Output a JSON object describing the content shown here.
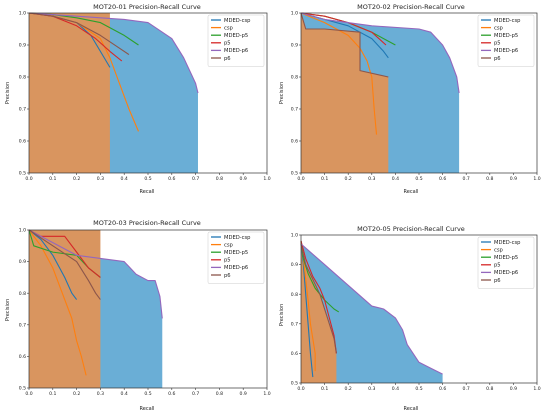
{
  "chart_data": [
    {
      "type": "line",
      "title": "MOT20-01 Precision-Recall Curve",
      "xlabel": "Recall",
      "ylabel": "Precision",
      "xlim": [
        0,
        1.0
      ],
      "ylim": [
        0.5,
        1.0
      ],
      "xticks": [
        "0.0",
        "0.1",
        "0.2",
        "0.3",
        "0.4",
        "0.5",
        "0.6",
        "0.7",
        "0.8",
        "0.9",
        "1.0"
      ],
      "yticks": [
        "0.5",
        "0.6",
        "0.7",
        "0.8",
        "0.9",
        "1.0"
      ],
      "legend_position": "top-right",
      "series": [
        {
          "name": "MDED-csp",
          "color": "#1f77b4",
          "x": [
            0.0,
            0.1,
            0.2,
            0.26,
            0.3,
            0.34
          ],
          "y": [
            1.0,
            0.99,
            0.97,
            0.93,
            0.88,
            0.83
          ]
        },
        {
          "name": "csp",
          "color": "#ff7f0e",
          "x": [
            0.0,
            0.1,
            0.2,
            0.3,
            0.34,
            0.38,
            0.42,
            0.46
          ],
          "y": [
            1.0,
            0.99,
            0.97,
            0.92,
            0.86,
            0.78,
            0.7,
            0.63
          ]
        },
        {
          "name": "MDED-p5",
          "color": "#2ca02c",
          "x": [
            0.0,
            0.1,
            0.2,
            0.3,
            0.4,
            0.46
          ],
          "y": [
            1.0,
            0.995,
            0.985,
            0.97,
            0.93,
            0.9
          ]
        },
        {
          "name": "p5",
          "color": "#d62728",
          "x": [
            0.0,
            0.1,
            0.2,
            0.28,
            0.34,
            0.39
          ],
          "y": [
            1.0,
            0.99,
            0.96,
            0.92,
            0.88,
            0.85
          ]
        },
        {
          "name": "MDED-p6",
          "color": "#9467bd",
          "x": [
            0.0,
            0.2,
            0.4,
            0.5,
            0.6,
            0.65,
            0.7,
            0.71
          ],
          "y": [
            1.0,
            0.99,
            0.98,
            0.97,
            0.92,
            0.86,
            0.78,
            0.75
          ]
        },
        {
          "name": "p6",
          "color": "#8c564b",
          "x": [
            0.0,
            0.1,
            0.2,
            0.3,
            0.38,
            0.42
          ],
          "y": [
            1.0,
            0.99,
            0.97,
            0.93,
            0.89,
            0.87
          ]
        }
      ],
      "fills": [
        {
          "color": "#6aaed6",
          "x": [
            0.0,
            0.2,
            0.4,
            0.5,
            0.6,
            0.65,
            0.7,
            0.71
          ],
          "y": [
            1.0,
            0.99,
            0.98,
            0.97,
            0.92,
            0.86,
            0.78,
            0.75
          ]
        },
        {
          "color": "#d9955f",
          "x": [
            0.0,
            0.34
          ],
          "y": [
            1.0,
            1.0
          ]
        }
      ]
    },
    {
      "type": "line",
      "title": "MOT20-02 Precision-Recall Curve",
      "xlabel": "Recall",
      "ylabel": "Precision",
      "xlim": [
        0,
        1.0
      ],
      "ylim": [
        0.5,
        1.0
      ],
      "xticks": [
        "0.0",
        "0.1",
        "0.2",
        "0.3",
        "0.4",
        "0.5",
        "0.6",
        "0.7",
        "0.8",
        "0.9",
        "1.0"
      ],
      "yticks": [
        "0.5",
        "0.6",
        "0.7",
        "0.8",
        "0.9",
        "1.0"
      ],
      "legend_position": "top-right",
      "series": [
        {
          "name": "MDED-csp",
          "color": "#1f77b4",
          "x": [
            0.0,
            0.1,
            0.2,
            0.3,
            0.35,
            0.37
          ],
          "y": [
            1.0,
            0.98,
            0.96,
            0.92,
            0.88,
            0.86
          ]
        },
        {
          "name": "csp",
          "color": "#ff7f0e",
          "x": [
            0.0,
            0.1,
            0.2,
            0.25,
            0.28,
            0.3,
            0.31,
            0.32
          ],
          "y": [
            1.0,
            0.97,
            0.93,
            0.89,
            0.85,
            0.8,
            0.7,
            0.62
          ]
        },
        {
          "name": "MDED-p5",
          "color": "#2ca02c",
          "x": [
            0.0,
            0.1,
            0.2,
            0.3,
            0.4
          ],
          "y": [
            1.0,
            0.99,
            0.97,
            0.94,
            0.9
          ]
        },
        {
          "name": "p5",
          "color": "#d62728",
          "x": [
            0.0,
            0.1,
            0.2,
            0.3,
            0.36
          ],
          "y": [
            1.0,
            0.99,
            0.97,
            0.94,
            0.9
          ]
        },
        {
          "name": "MDED-p6",
          "color": "#9467bd",
          "x": [
            0.0,
            0.1,
            0.3,
            0.5,
            0.55,
            0.6,
            0.63,
            0.66,
            0.67
          ],
          "y": [
            1.0,
            0.98,
            0.96,
            0.95,
            0.94,
            0.9,
            0.86,
            0.8,
            0.75
          ]
        },
        {
          "name": "p6",
          "color": "#8c564b",
          "x": [
            0.0,
            0.02,
            0.1,
            0.25,
            0.25,
            0.37
          ],
          "y": [
            1.0,
            0.95,
            0.95,
            0.94,
            0.82,
            0.8
          ]
        }
      ],
      "fills": [
        {
          "color": "#6aaed6",
          "x": [
            0.0,
            0.1,
            0.3,
            0.5,
            0.55,
            0.6,
            0.63,
            0.66,
            0.67
          ],
          "y": [
            1.0,
            0.98,
            0.96,
            0.95,
            0.94,
            0.9,
            0.86,
            0.8,
            0.75
          ]
        },
        {
          "color": "#d9955f",
          "x": [
            0.0,
            0.02,
            0.1,
            0.25,
            0.25,
            0.37
          ],
          "y": [
            1.0,
            0.95,
            0.95,
            0.94,
            0.82,
            0.8
          ]
        }
      ]
    },
    {
      "type": "line",
      "title": "MOT20-03 Precision-Recall Curve",
      "xlabel": "Recall",
      "ylabel": "Precision",
      "xlim": [
        0,
        1.0
      ],
      "ylim": [
        0.5,
        1.0
      ],
      "xticks": [
        "0.0",
        "0.1",
        "0.2",
        "0.3",
        "0.4",
        "0.5",
        "0.6",
        "0.7",
        "0.8",
        "0.9",
        "1.0"
      ],
      "yticks": [
        "0.5",
        "0.6",
        "0.7",
        "0.8",
        "0.9",
        "1.0"
      ],
      "legend_position": "top-right",
      "series": [
        {
          "name": "MDED-csp",
          "color": "#1f77b4",
          "x": [
            0.0,
            0.05,
            0.1,
            0.15,
            0.18,
            0.2,
            0.2
          ],
          "y": [
            1.0,
            0.97,
            0.92,
            0.85,
            0.8,
            0.78,
            0.78
          ]
        },
        {
          "name": "csp",
          "color": "#ff7f0e",
          "x": [
            0.0,
            0.05,
            0.1,
            0.15,
            0.18,
            0.2,
            0.22,
            0.24
          ],
          "y": [
            1.0,
            0.95,
            0.88,
            0.78,
            0.72,
            0.65,
            0.6,
            0.54
          ]
        },
        {
          "name": "MDED-p5",
          "color": "#2ca02c",
          "x": [
            0.0,
            0.02,
            0.1,
            0.2,
            0.25,
            0.3
          ],
          "y": [
            1.0,
            0.95,
            0.93,
            0.92,
            0.88,
            0.85
          ]
        },
        {
          "name": "p5",
          "color": "#d62728",
          "x": [
            0.0,
            0.05,
            0.1,
            0.15,
            0.2,
            0.25,
            0.3
          ],
          "y": [
            1.0,
            0.98,
            0.98,
            0.98,
            0.93,
            0.88,
            0.85
          ]
        },
        {
          "name": "MDED-p6",
          "color": "#9467bd",
          "x": [
            0.0,
            0.2,
            0.4,
            0.45,
            0.5,
            0.53,
            0.55,
            0.56
          ],
          "y": [
            1.0,
            0.92,
            0.9,
            0.86,
            0.84,
            0.84,
            0.79,
            0.72
          ]
        },
        {
          "name": "p6",
          "color": "#8c564b",
          "x": [
            0.0,
            0.1,
            0.2,
            0.25,
            0.28,
            0.3
          ],
          "y": [
            1.0,
            0.95,
            0.9,
            0.84,
            0.8,
            0.78
          ]
        }
      ],
      "fills": [
        {
          "color": "#6aaed6",
          "x": [
            0.0,
            0.2,
            0.4,
            0.45,
            0.5,
            0.53,
            0.55,
            0.56
          ],
          "y": [
            1.0,
            0.92,
            0.9,
            0.86,
            0.84,
            0.84,
            0.79,
            0.72
          ]
        },
        {
          "color": "#d9955f",
          "x": [
            0.0,
            0.3
          ],
          "y": [
            1.0,
            1.0
          ]
        }
      ]
    },
    {
      "type": "line",
      "title": "MOT20-05 Precision-Recall Curve",
      "xlabel": "Recall",
      "ylabel": "Precision",
      "xlim": [
        0,
        1.0
      ],
      "ylim": [
        0.5,
        1.0
      ],
      "xticks": [
        "0.0",
        "0.1",
        "0.2",
        "0.3",
        "0.4",
        "0.5",
        "0.6",
        "0.7",
        "0.8",
        "0.9",
        "1.0"
      ],
      "yticks": [
        "0.5",
        "0.6",
        "0.7",
        "0.8",
        "0.9",
        "1.0"
      ],
      "legend_position": "top-right",
      "series": [
        {
          "name": "MDED-csp",
          "color": "#1f77b4",
          "x": [
            0.0,
            0.01,
            0.02,
            0.03,
            0.04,
            0.05
          ],
          "y": [
            0.98,
            0.9,
            0.8,
            0.7,
            0.6,
            0.52
          ]
        },
        {
          "name": "csp",
          "color": "#ff7f0e",
          "x": [
            0.0,
            0.01,
            0.02,
            0.03,
            0.04,
            0.05,
            0.06,
            0.06
          ],
          "y": [
            0.98,
            0.92,
            0.85,
            0.78,
            0.7,
            0.65,
            0.6,
            0.54
          ]
        },
        {
          "name": "MDED-p5",
          "color": "#2ca02c",
          "x": [
            0.0,
            0.01,
            0.03,
            0.06,
            0.1,
            0.14,
            0.16
          ],
          "y": [
            0.98,
            0.92,
            0.87,
            0.82,
            0.78,
            0.75,
            0.74
          ]
        },
        {
          "name": "p5",
          "color": "#d62728",
          "x": [
            0.0,
            0.02,
            0.05,
            0.08,
            0.1,
            0.12,
            0.14,
            0.15
          ],
          "y": [
            0.98,
            0.92,
            0.86,
            0.82,
            0.78,
            0.72,
            0.66,
            0.6
          ]
        },
        {
          "name": "MDED-p6",
          "color": "#9467bd",
          "x": [
            0.0,
            0.1,
            0.2,
            0.3,
            0.35,
            0.4,
            0.43,
            0.45,
            0.5,
            0.55,
            0.6
          ],
          "y": [
            0.97,
            0.9,
            0.83,
            0.76,
            0.75,
            0.72,
            0.68,
            0.63,
            0.57,
            0.55,
            0.53
          ]
        },
        {
          "name": "p6",
          "color": "#8c564b",
          "x": [
            0.0,
            0.02,
            0.05,
            0.08,
            0.1,
            0.12,
            0.14,
            0.15
          ],
          "y": [
            0.97,
            0.9,
            0.85,
            0.8,
            0.75,
            0.7,
            0.65,
            0.6
          ]
        }
      ],
      "fills": [
        {
          "color": "#6aaed6",
          "x": [
            0.0,
            0.1,
            0.2,
            0.3,
            0.35,
            0.4,
            0.43,
            0.45,
            0.5,
            0.55,
            0.6
          ],
          "y": [
            0.97,
            0.9,
            0.83,
            0.76,
            0.75,
            0.72,
            0.68,
            0.63,
            0.57,
            0.55,
            0.53
          ]
        },
        {
          "color": "#d9955f",
          "x": [
            0.0,
            0.02,
            0.05,
            0.08,
            0.1,
            0.12,
            0.14,
            0.15
          ],
          "y": [
            0.97,
            0.9,
            0.85,
            0.8,
            0.75,
            0.7,
            0.65,
            0.6
          ]
        }
      ]
    }
  ]
}
